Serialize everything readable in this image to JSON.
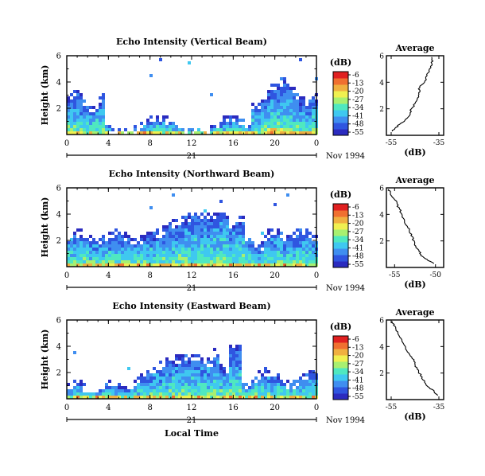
{
  "chart_data": {
    "type": "heatmap",
    "colorbar": {
      "unit_label": "(dB)",
      "ticks": [
        "-6",
        "-13",
        "-20",
        "-27",
        "-34",
        "-41",
        "-48",
        "-55"
      ],
      "colors": [
        "#2b2bbf",
        "#2f55e0",
        "#3f8ef0",
        "#3fc8f0",
        "#4fe8c0",
        "#a8f070",
        "#f0f050",
        "#f0b040",
        "#f07030",
        "#e02020"
      ]
    },
    "xaxis": {
      "ticks": [
        "0",
        "4",
        "8",
        "12",
        "16",
        "20",
        "0"
      ],
      "values": [
        0,
        4,
        8,
        12,
        16,
        20,
        24
      ],
      "range": [
        0,
        24
      ],
      "day_label": "21",
      "month_label": "Nov 1994"
    },
    "yaxis": {
      "label": "Height (km)",
      "ticks": [
        "2",
        "4",
        "6"
      ],
      "values": [
        2,
        4,
        6
      ],
      "range": [
        0,
        6
      ]
    },
    "xlabel": "Local Time",
    "panels": [
      {
        "title": "Echo Intensity (Vertical Beam)",
        "profile_title": "Average",
        "profile_xlabel": "(dB)",
        "profile_xticks": [
          "-55",
          "-35"
        ],
        "profile_xvalues": [
          -55,
          -35
        ],
        "profile_xlim": [
          -57,
          -33
        ],
        "profile": [
          [
            -54.5,
            0.3
          ],
          [
            -53,
            0.6
          ],
          [
            -51,
            0.9
          ],
          [
            -49,
            1.2
          ],
          [
            -47,
            1.6
          ],
          [
            -46.5,
            2.0
          ],
          [
            -45,
            2.4
          ],
          [
            -44,
            2.8
          ],
          [
            -43.5,
            3.2
          ],
          [
            -43,
            3.6
          ],
          [
            -41,
            4.0
          ],
          [
            -40.5,
            4.4
          ],
          [
            -39,
            4.8
          ],
          [
            -38.5,
            5.2
          ],
          [
            -37.5,
            5.6
          ],
          [
            -38,
            5.9
          ]
        ]
      },
      {
        "title": "Echo Intensity (Northward Beam)",
        "profile_title": "Average",
        "profile_xlabel": "(dB)",
        "profile_xticks": [
          "-55",
          "-50"
        ],
        "profile_xvalues": [
          -55,
          -50
        ],
        "profile_xlim": [
          -56,
          -49
        ],
        "profile": [
          [
            -50.2,
            0.3
          ],
          [
            -51,
            0.6
          ],
          [
            -51.8,
            0.9
          ],
          [
            -52,
            1.2
          ],
          [
            -52.4,
            1.6
          ],
          [
            -52.6,
            2.0
          ],
          [
            -53,
            2.4
          ],
          [
            -53.2,
            2.8
          ],
          [
            -53.6,
            3.2
          ],
          [
            -53.8,
            3.6
          ],
          [
            -54.1,
            4.0
          ],
          [
            -54.4,
            4.4
          ],
          [
            -54.7,
            4.8
          ],
          [
            -55.1,
            5.2
          ],
          [
            -55.5,
            5.6
          ],
          [
            -55.7,
            5.9
          ]
        ]
      },
      {
        "title": "Echo Intensity (Eastward Beam)",
        "profile_title": "Average",
        "profile_xlabel": "(dB)",
        "profile_xticks": [
          "-55",
          "-35"
        ],
        "profile_xvalues": [
          -55,
          -35
        ],
        "profile_xlim": [
          -57,
          -33
        ],
        "profile": [
          [
            -35.5,
            0.3
          ],
          [
            -37,
            0.6
          ],
          [
            -39,
            0.9
          ],
          [
            -41,
            1.3
          ],
          [
            -42,
            1.7
          ],
          [
            -43.5,
            2.1
          ],
          [
            -45,
            2.5
          ],
          [
            -45.5,
            2.9
          ],
          [
            -47,
            3.3
          ],
          [
            -48.5,
            3.7
          ],
          [
            -49.5,
            4.1
          ],
          [
            -50.5,
            4.5
          ],
          [
            -52,
            4.9
          ],
          [
            -53,
            5.3
          ],
          [
            -54,
            5.6
          ],
          [
            -54.5,
            5.9
          ]
        ]
      }
    ]
  }
}
